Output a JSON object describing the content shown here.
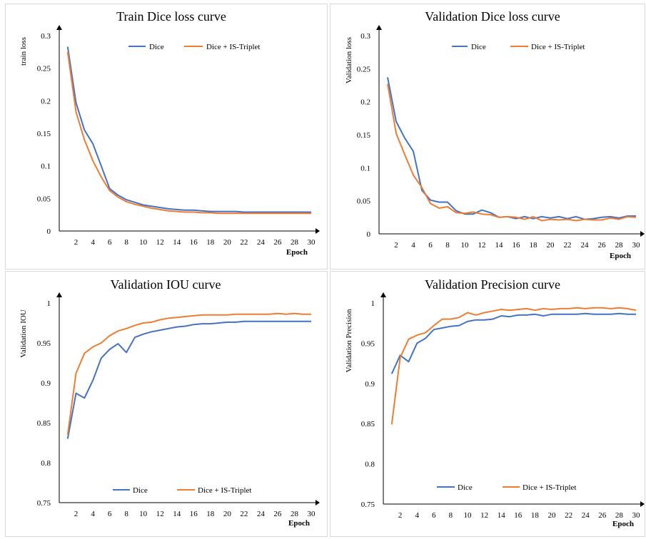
{
  "colors": {
    "dice": "#4472C4",
    "dice_triplet": "#ED7D31"
  },
  "chart_data": [
    {
      "type": "line",
      "title": "Train Dice loss curve",
      "xlabel": "Epoch",
      "ylabel": "train loss",
      "xlim": [
        0,
        30
      ],
      "ylim": [
        0,
        0.3
      ],
      "x_ticks": [
        2,
        4,
        6,
        8,
        10,
        12,
        14,
        16,
        18,
        20,
        22,
        24,
        26,
        28,
        30
      ],
      "y_ticks": [
        "0",
        "0.05",
        "0.1",
        "0.15",
        "0.2",
        "0.25",
        "0.3"
      ],
      "legend_position": "top",
      "series": [
        {
          "name": "Dice",
          "x": [
            1,
            2,
            3,
            4,
            5,
            6,
            7,
            8,
            9,
            10,
            11,
            12,
            13,
            14,
            15,
            16,
            17,
            18,
            19,
            20,
            21,
            22,
            23,
            24,
            25,
            26,
            27,
            28,
            29,
            30
          ],
          "values": [
            0.283,
            0.197,
            0.155,
            0.134,
            0.1,
            0.065,
            0.055,
            0.048,
            0.044,
            0.04,
            0.038,
            0.036,
            0.034,
            0.033,
            0.032,
            0.032,
            0.031,
            0.03,
            0.03,
            0.03,
            0.03,
            0.029,
            0.029,
            0.029,
            0.029,
            0.029,
            0.029,
            0.029,
            0.029,
            0.029
          ]
        },
        {
          "name": "Dice + IS-Triplet",
          "x": [
            1,
            2,
            3,
            4,
            5,
            6,
            7,
            8,
            9,
            10,
            11,
            12,
            13,
            14,
            15,
            16,
            17,
            18,
            19,
            20,
            21,
            22,
            23,
            24,
            25,
            26,
            27,
            28,
            29,
            30
          ],
          "values": [
            0.275,
            0.183,
            0.14,
            0.108,
            0.083,
            0.062,
            0.052,
            0.045,
            0.041,
            0.038,
            0.035,
            0.033,
            0.031,
            0.03,
            0.029,
            0.029,
            0.028,
            0.028,
            0.027,
            0.027,
            0.027,
            0.027,
            0.027,
            0.027,
            0.027,
            0.027,
            0.027,
            0.027,
            0.027,
            0.027
          ]
        }
      ]
    },
    {
      "type": "line",
      "title": "Validation  Dice loss curve",
      "xlabel": "Epoch",
      "ylabel": "Validation  loss",
      "xlim": [
        0,
        30
      ],
      "ylim": [
        0,
        0.3
      ],
      "x_ticks": [
        2,
        4,
        6,
        8,
        10,
        12,
        14,
        16,
        18,
        20,
        22,
        24,
        26,
        28,
        30
      ],
      "y_ticks": [
        "0",
        "0.05",
        "0.1",
        "0.15",
        "0.2",
        "0.25",
        "0.3"
      ],
      "legend_position": "top",
      "series": [
        {
          "name": "Dice",
          "x": [
            1,
            2,
            3,
            4,
            5,
            6,
            7,
            8,
            9,
            10,
            11,
            12,
            13,
            14,
            15,
            16,
            17,
            18,
            19,
            20,
            21,
            22,
            23,
            24,
            25,
            26,
            27,
            28,
            29,
            30
          ],
          "values": [
            0.237,
            0.17,
            0.145,
            0.125,
            0.066,
            0.051,
            0.048,
            0.048,
            0.035,
            0.03,
            0.03,
            0.036,
            0.032,
            0.025,
            0.026,
            0.023,
            0.026,
            0.023,
            0.026,
            0.024,
            0.026,
            0.023,
            0.026,
            0.022,
            0.023,
            0.025,
            0.026,
            0.024,
            0.027,
            0.027
          ]
        },
        {
          "name": "Dice + IS-Triplet",
          "x": [
            1,
            2,
            3,
            4,
            5,
            6,
            7,
            8,
            9,
            10,
            11,
            12,
            13,
            14,
            15,
            16,
            17,
            18,
            19,
            20,
            21,
            22,
            23,
            24,
            25,
            26,
            27,
            28,
            29,
            30
          ],
          "values": [
            0.227,
            0.152,
            0.12,
            0.089,
            0.07,
            0.046,
            0.039,
            0.041,
            0.032,
            0.031,
            0.033,
            0.03,
            0.029,
            0.025,
            0.026,
            0.025,
            0.022,
            0.026,
            0.02,
            0.022,
            0.021,
            0.022,
            0.02,
            0.022,
            0.021,
            0.021,
            0.024,
            0.022,
            0.026,
            0.025
          ]
        }
      ]
    },
    {
      "type": "line",
      "title": "Validation  IOU curve",
      "xlabel": "Epoch",
      "ylabel": "Validation  IOU",
      "xlim": [
        0,
        30
      ],
      "ylim": [
        0.75,
        1
      ],
      "x_ticks": [
        2,
        4,
        6,
        8,
        10,
        12,
        14,
        16,
        18,
        20,
        22,
        24,
        26,
        28,
        30
      ],
      "y_ticks": [
        "0.75",
        "0.8",
        "0.85",
        "0.9",
        "0.95",
        "1"
      ],
      "legend_position": "bottom",
      "series": [
        {
          "name": "Dice",
          "x": [
            1,
            2,
            3,
            4,
            5,
            6,
            7,
            8,
            9,
            10,
            11,
            12,
            13,
            14,
            15,
            16,
            17,
            18,
            19,
            20,
            21,
            22,
            23,
            24,
            25,
            26,
            27,
            28,
            29,
            30
          ],
          "values": [
            0.83,
            0.887,
            0.881,
            0.903,
            0.931,
            0.942,
            0.949,
            0.938,
            0.957,
            0.961,
            0.964,
            0.966,
            0.968,
            0.97,
            0.971,
            0.973,
            0.974,
            0.974,
            0.975,
            0.976,
            0.976,
            0.977,
            0.977,
            0.977,
            0.977,
            0.977,
            0.977,
            0.977,
            0.977,
            0.977
          ]
        },
        {
          "name": "Dice + IS-Triplet",
          "x": [
            1,
            2,
            3,
            4,
            5,
            6,
            7,
            8,
            9,
            10,
            11,
            12,
            13,
            14,
            15,
            16,
            17,
            18,
            19,
            20,
            21,
            22,
            23,
            24,
            25,
            26,
            27,
            28,
            29,
            30
          ],
          "values": [
            0.835,
            0.912,
            0.937,
            0.945,
            0.95,
            0.959,
            0.965,
            0.968,
            0.972,
            0.975,
            0.976,
            0.979,
            0.981,
            0.982,
            0.983,
            0.984,
            0.985,
            0.985,
            0.985,
            0.985,
            0.986,
            0.986,
            0.986,
            0.986,
            0.986,
            0.987,
            0.986,
            0.987,
            0.986,
            0.986
          ]
        }
      ]
    },
    {
      "type": "line",
      "title": "Validation  Precision curve",
      "xlabel": "Epoch",
      "ylabel": "Validation  Precision",
      "xlim": [
        0,
        30
      ],
      "ylim": [
        0.75,
        1
      ],
      "x_ticks": [
        2,
        4,
        6,
        8,
        10,
        12,
        14,
        16,
        18,
        20,
        22,
        24,
        26,
        28,
        30
      ],
      "y_ticks": [
        "0.75",
        "0.8",
        "0.85",
        "0.9",
        "0.95",
        "1"
      ],
      "legend_position": "bottom",
      "series": [
        {
          "name": "Dice",
          "x": [
            1,
            2,
            3,
            4,
            5,
            6,
            7,
            8,
            9,
            10,
            11,
            12,
            13,
            14,
            15,
            16,
            17,
            18,
            19,
            20,
            21,
            22,
            23,
            24,
            25,
            26,
            27,
            28,
            29,
            30
          ],
          "values": [
            0.912,
            0.935,
            0.927,
            0.95,
            0.956,
            0.967,
            0.969,
            0.971,
            0.972,
            0.977,
            0.979,
            0.979,
            0.98,
            0.984,
            0.983,
            0.985,
            0.985,
            0.986,
            0.984,
            0.986,
            0.986,
            0.986,
            0.986,
            0.987,
            0.986,
            0.986,
            0.986,
            0.987,
            0.986,
            0.986
          ]
        },
        {
          "name": "Dice + IS-Triplet",
          "x": [
            1,
            2,
            3,
            4,
            5,
            6,
            7,
            8,
            9,
            10,
            11,
            12,
            13,
            14,
            15,
            16,
            17,
            18,
            19,
            20,
            21,
            22,
            23,
            24,
            25,
            26,
            27,
            28,
            29,
            30
          ],
          "values": [
            0.849,
            0.932,
            0.955,
            0.96,
            0.963,
            0.972,
            0.98,
            0.98,
            0.982,
            0.988,
            0.985,
            0.988,
            0.99,
            0.992,
            0.991,
            0.992,
            0.993,
            0.991,
            0.993,
            0.992,
            0.993,
            0.993,
            0.994,
            0.993,
            0.994,
            0.994,
            0.993,
            0.994,
            0.993,
            0.991
          ]
        }
      ]
    }
  ]
}
